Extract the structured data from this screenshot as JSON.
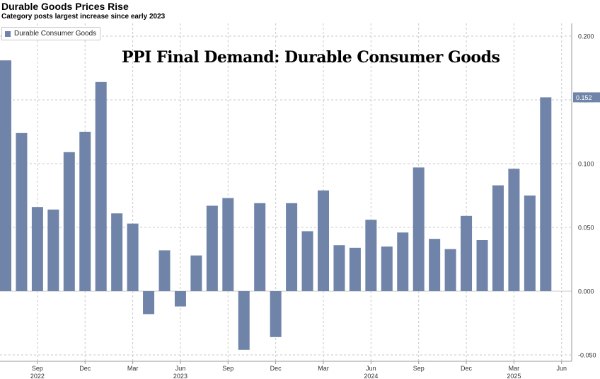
{
  "header": {
    "title": "Durable Goods Prices Rise",
    "subtitle": "Category posts largest increase since early 2023"
  },
  "overlay_title": "PPI Final Demand: Durable Consumer Goods",
  "colors": {
    "bar": "#6f84a8",
    "grid": "#c8c8c8",
    "value_label_bg": "#6f84a8"
  },
  "chart_data": {
    "type": "bar",
    "legend": [
      "Durable Consumer Goods"
    ],
    "legend_position": "top-left",
    "grid": true,
    "ylim": [
      -0.055,
      0.21
    ],
    "y_axis_side": "right",
    "y_ticks": [
      0.2,
      0.15,
      0.1,
      0.05,
      0.0,
      -0.05
    ],
    "y_tick_labels": [
      "0.200",
      "0.150",
      "0.100",
      "0.050",
      "0.000",
      "-0.050"
    ],
    "last_value_label": "0.152",
    "categories": [
      "2022-07",
      "2022-08",
      "2022-09",
      "2022-10",
      "2022-11",
      "2022-12",
      "2023-01",
      "2023-02",
      "2023-03",
      "2023-04",
      "2023-05",
      "2023-06",
      "2023-07",
      "2023-08",
      "2023-09",
      "2023-10",
      "2023-11",
      "2023-12",
      "2024-01",
      "2024-02",
      "2024-03",
      "2024-04",
      "2024-05",
      "2024-06",
      "2024-07",
      "2024-08",
      "2024-09",
      "2024-10",
      "2024-11",
      "2024-12",
      "2025-01",
      "2025-02",
      "2025-03",
      "2025-04",
      "2025-05"
    ],
    "series": [
      {
        "name": "Durable Consumer Goods",
        "values": [
          0.181,
          0.124,
          0.066,
          0.064,
          0.109,
          0.125,
          0.164,
          0.061,
          0.053,
          -0.018,
          0.032,
          -0.012,
          0.028,
          0.067,
          0.073,
          -0.046,
          0.069,
          -0.036,
          0.069,
          0.047,
          0.079,
          0.036,
          0.034,
          0.056,
          0.035,
          0.046,
          0.097,
          0.041,
          0.033,
          0.059,
          0.04,
          0.083,
          0.096,
          0.075,
          0.152
        ]
      }
    ],
    "x_tick_labels": [
      {
        "month": "Sep",
        "year": "2022",
        "index": 2
      },
      {
        "month": "Dec",
        "year": "",
        "index": 5
      },
      {
        "month": "Mar",
        "year": "",
        "index": 8
      },
      {
        "month": "Jun",
        "year": "2023",
        "index": 11
      },
      {
        "month": "Sep",
        "year": "",
        "index": 14
      },
      {
        "month": "Dec",
        "year": "",
        "index": 17
      },
      {
        "month": "Mar",
        "year": "",
        "index": 20
      },
      {
        "month": "Jun",
        "year": "2024",
        "index": 23
      },
      {
        "month": "Sep",
        "year": "",
        "index": 26
      },
      {
        "month": "Dec",
        "year": "",
        "index": 29
      },
      {
        "month": "Mar",
        "year": "2025",
        "index": 32
      },
      {
        "month": "Jun",
        "year": "",
        "index": 35
      }
    ]
  }
}
